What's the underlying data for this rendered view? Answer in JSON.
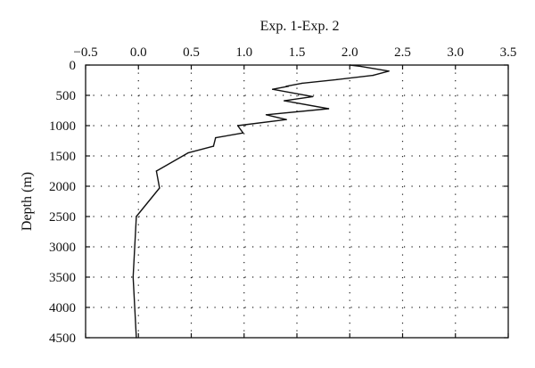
{
  "chart_data": {
    "type": "line",
    "title": "Exp. 1-Exp. 2",
    "xlabel": "",
    "ylabel": "Depth (m)",
    "xlim": [
      -0.5,
      3.5
    ],
    "ylim": [
      4500,
      0
    ],
    "x_axis_position": "top",
    "y_inverted": true,
    "grid": true,
    "grid_style": "dotted",
    "x_ticks": [
      -0.5,
      0.0,
      0.5,
      1.0,
      1.5,
      2.0,
      2.5,
      3.0,
      3.5
    ],
    "x_tick_labels": [
      "−0.5",
      "0.0",
      "0.5",
      "1.0",
      "1.5",
      "2.0",
      "2.5",
      "3.0",
      "3.5"
    ],
    "y_ticks": [
      0,
      500,
      1000,
      1500,
      2000,
      2500,
      3000,
      3500,
      4000,
      4500
    ],
    "y_tick_labels": [
      "0",
      "500",
      "1000",
      "1500",
      "2000",
      "2500",
      "3000",
      "3500",
      "4000",
      "4500"
    ],
    "series": [
      {
        "color": "#111111",
        "points": [
          {
            "x": 2.0,
            "y": 0
          },
          {
            "x": 2.1,
            "y": 20
          },
          {
            "x": 2.37,
            "y": 100
          },
          {
            "x": 2.22,
            "y": 170
          },
          {
            "x": 1.88,
            "y": 240
          },
          {
            "x": 1.55,
            "y": 300
          },
          {
            "x": 1.4,
            "y": 350
          },
          {
            "x": 1.42,
            "y": 350
          },
          {
            "x": 1.27,
            "y": 400
          },
          {
            "x": 1.65,
            "y": 520
          },
          {
            "x": 1.38,
            "y": 590
          },
          {
            "x": 1.8,
            "y": 720
          },
          {
            "x": 1.21,
            "y": 820
          },
          {
            "x": 1.4,
            "y": 900
          },
          {
            "x": 0.94,
            "y": 1000
          },
          {
            "x": 0.99,
            "y": 1120
          },
          {
            "x": 0.73,
            "y": 1200
          },
          {
            "x": 0.71,
            "y": 1340
          },
          {
            "x": 0.47,
            "y": 1450
          },
          {
            "x": 0.17,
            "y": 1750
          },
          {
            "x": 0.2,
            "y": 2030
          },
          {
            "x": -0.02,
            "y": 2500
          },
          {
            "x": -0.05,
            "y": 3500
          },
          {
            "x": -0.02,
            "y": 4500
          }
        ]
      }
    ]
  }
}
